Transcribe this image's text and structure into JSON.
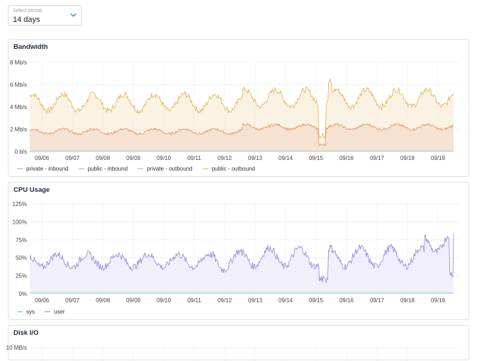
{
  "period": {
    "label": "Select period",
    "value": "14 days"
  },
  "x_ticks": [
    "09/06",
    "09/07",
    "09/08",
    "09/09",
    "09/10",
    "09/11",
    "09/12",
    "09/13",
    "09/14",
    "09/15",
    "09/16",
    "09/17",
    "09/18",
    "09/19"
  ],
  "bandwidth": {
    "title": "Bandwidth",
    "y_ticks": [
      "8 Mb/s",
      "6 Mb/s",
      "4 Mb/s",
      "2 Mb/s",
      "0 b/s"
    ],
    "legend": [
      {
        "label": "private - inbound",
        "color": "#8bbf9f"
      },
      {
        "label": "public - inbound",
        "color": "#e8a273"
      },
      {
        "label": "private - outbound",
        "color": "#7ec3cc"
      },
      {
        "label": "public - outbound",
        "color": "#e2b44c"
      }
    ]
  },
  "cpu": {
    "title": "CPU Usage",
    "y_ticks": [
      "125%",
      "100%",
      "75%",
      "50%",
      "25%",
      "0%"
    ],
    "legend": [
      {
        "label": "sys",
        "color": "#6cc3c8"
      },
      {
        "label": "user",
        "color": "#8c86e0"
      }
    ]
  },
  "disk": {
    "title": "Disk I/O",
    "y_ticks": [
      "10 MB/s"
    ]
  },
  "chart_data": [
    {
      "type": "area",
      "title": "Bandwidth",
      "ylim": [
        0,
        8
      ],
      "x": [
        "09/06",
        "09/07",
        "09/08",
        "09/09",
        "09/10",
        "09/11",
        "09/12",
        "09/13",
        "09/14",
        "09/15",
        "09/16",
        "09/17",
        "09/18",
        "09/19"
      ],
      "series": [
        {
          "name": "public - outbound",
          "values": [
            4.6,
            4.5,
            4.4,
            4.4,
            4.5,
            4.5,
            4.6,
            4.9,
            4.8,
            4.6,
            4.8,
            4.9,
            5.0,
            5.0
          ]
        },
        {
          "name": "public - inbound",
          "values": [
            1.8,
            1.8,
            1.8,
            1.8,
            1.9,
            2.0,
            2.0,
            2.3,
            2.3,
            2.3,
            2.2,
            2.3,
            2.3,
            2.2
          ]
        },
        {
          "name": "private - inbound",
          "values": [
            0,
            0,
            0,
            0,
            0,
            0,
            0,
            0,
            0,
            0,
            0,
            0,
            0,
            0
          ]
        },
        {
          "name": "private - outbound",
          "values": [
            0,
            0,
            0,
            0,
            0,
            0,
            0,
            0,
            0,
            0,
            0,
            0,
            0,
            0
          ]
        }
      ]
    },
    {
      "type": "area",
      "title": "CPU Usage",
      "ylim": [
        0,
        125
      ],
      "x": [
        "09/06",
        "09/07",
        "09/08",
        "09/09",
        "09/10",
        "09/11",
        "09/12",
        "09/13",
        "09/14",
        "09/15",
        "09/16",
        "09/17",
        "09/18",
        "09/19"
      ],
      "series": [
        {
          "name": "user",
          "values": [
            45,
            50,
            50,
            48,
            45,
            46,
            48,
            53,
            55,
            52,
            50,
            52,
            52,
            60
          ]
        },
        {
          "name": "sys",
          "values": [
            1,
            1,
            1,
            1,
            1,
            1,
            1,
            1,
            1,
            1,
            1,
            1,
            1,
            1
          ]
        }
      ]
    }
  ]
}
